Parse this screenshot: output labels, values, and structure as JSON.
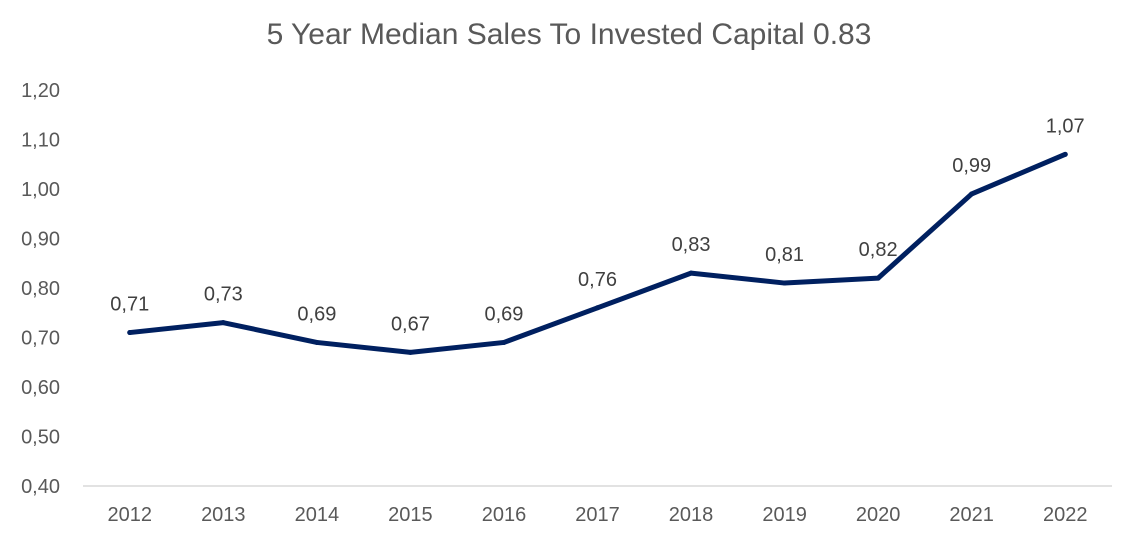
{
  "chart_data": {
    "type": "line",
    "title": "5 Year Median Sales To Invested Capital 0.83",
    "xlabel": "",
    "ylabel": "",
    "categories": [
      "2012",
      "2013",
      "2014",
      "2015",
      "2016",
      "2017",
      "2018",
      "2019",
      "2020",
      "2021",
      "2022"
    ],
    "series": [
      {
        "name": "Sales To Invested Capital",
        "values": [
          0.71,
          0.73,
          0.69,
          0.67,
          0.69,
          0.76,
          0.83,
          0.81,
          0.82,
          0.99,
          1.07
        ],
        "labels": [
          "0,71",
          "0,73",
          "0,69",
          "0,67",
          "0,69",
          "0,76",
          "0,83",
          "0,81",
          "0,82",
          "0,99",
          "1,07"
        ]
      }
    ],
    "ylim": [
      0.4,
      1.2
    ],
    "yticks": [
      0.4,
      0.5,
      0.6,
      0.7,
      0.8,
      0.9,
      1.0,
      1.1,
      1.2
    ],
    "ytick_labels": [
      "0,40",
      "0,50",
      "0,60",
      "0,70",
      "0,80",
      "0,90",
      "1,00",
      "1,10",
      "1,20"
    ],
    "grid": false,
    "legend": "none",
    "colors": {
      "line": "#002060",
      "text": "#595959",
      "axis": "#d9d9d9"
    }
  }
}
